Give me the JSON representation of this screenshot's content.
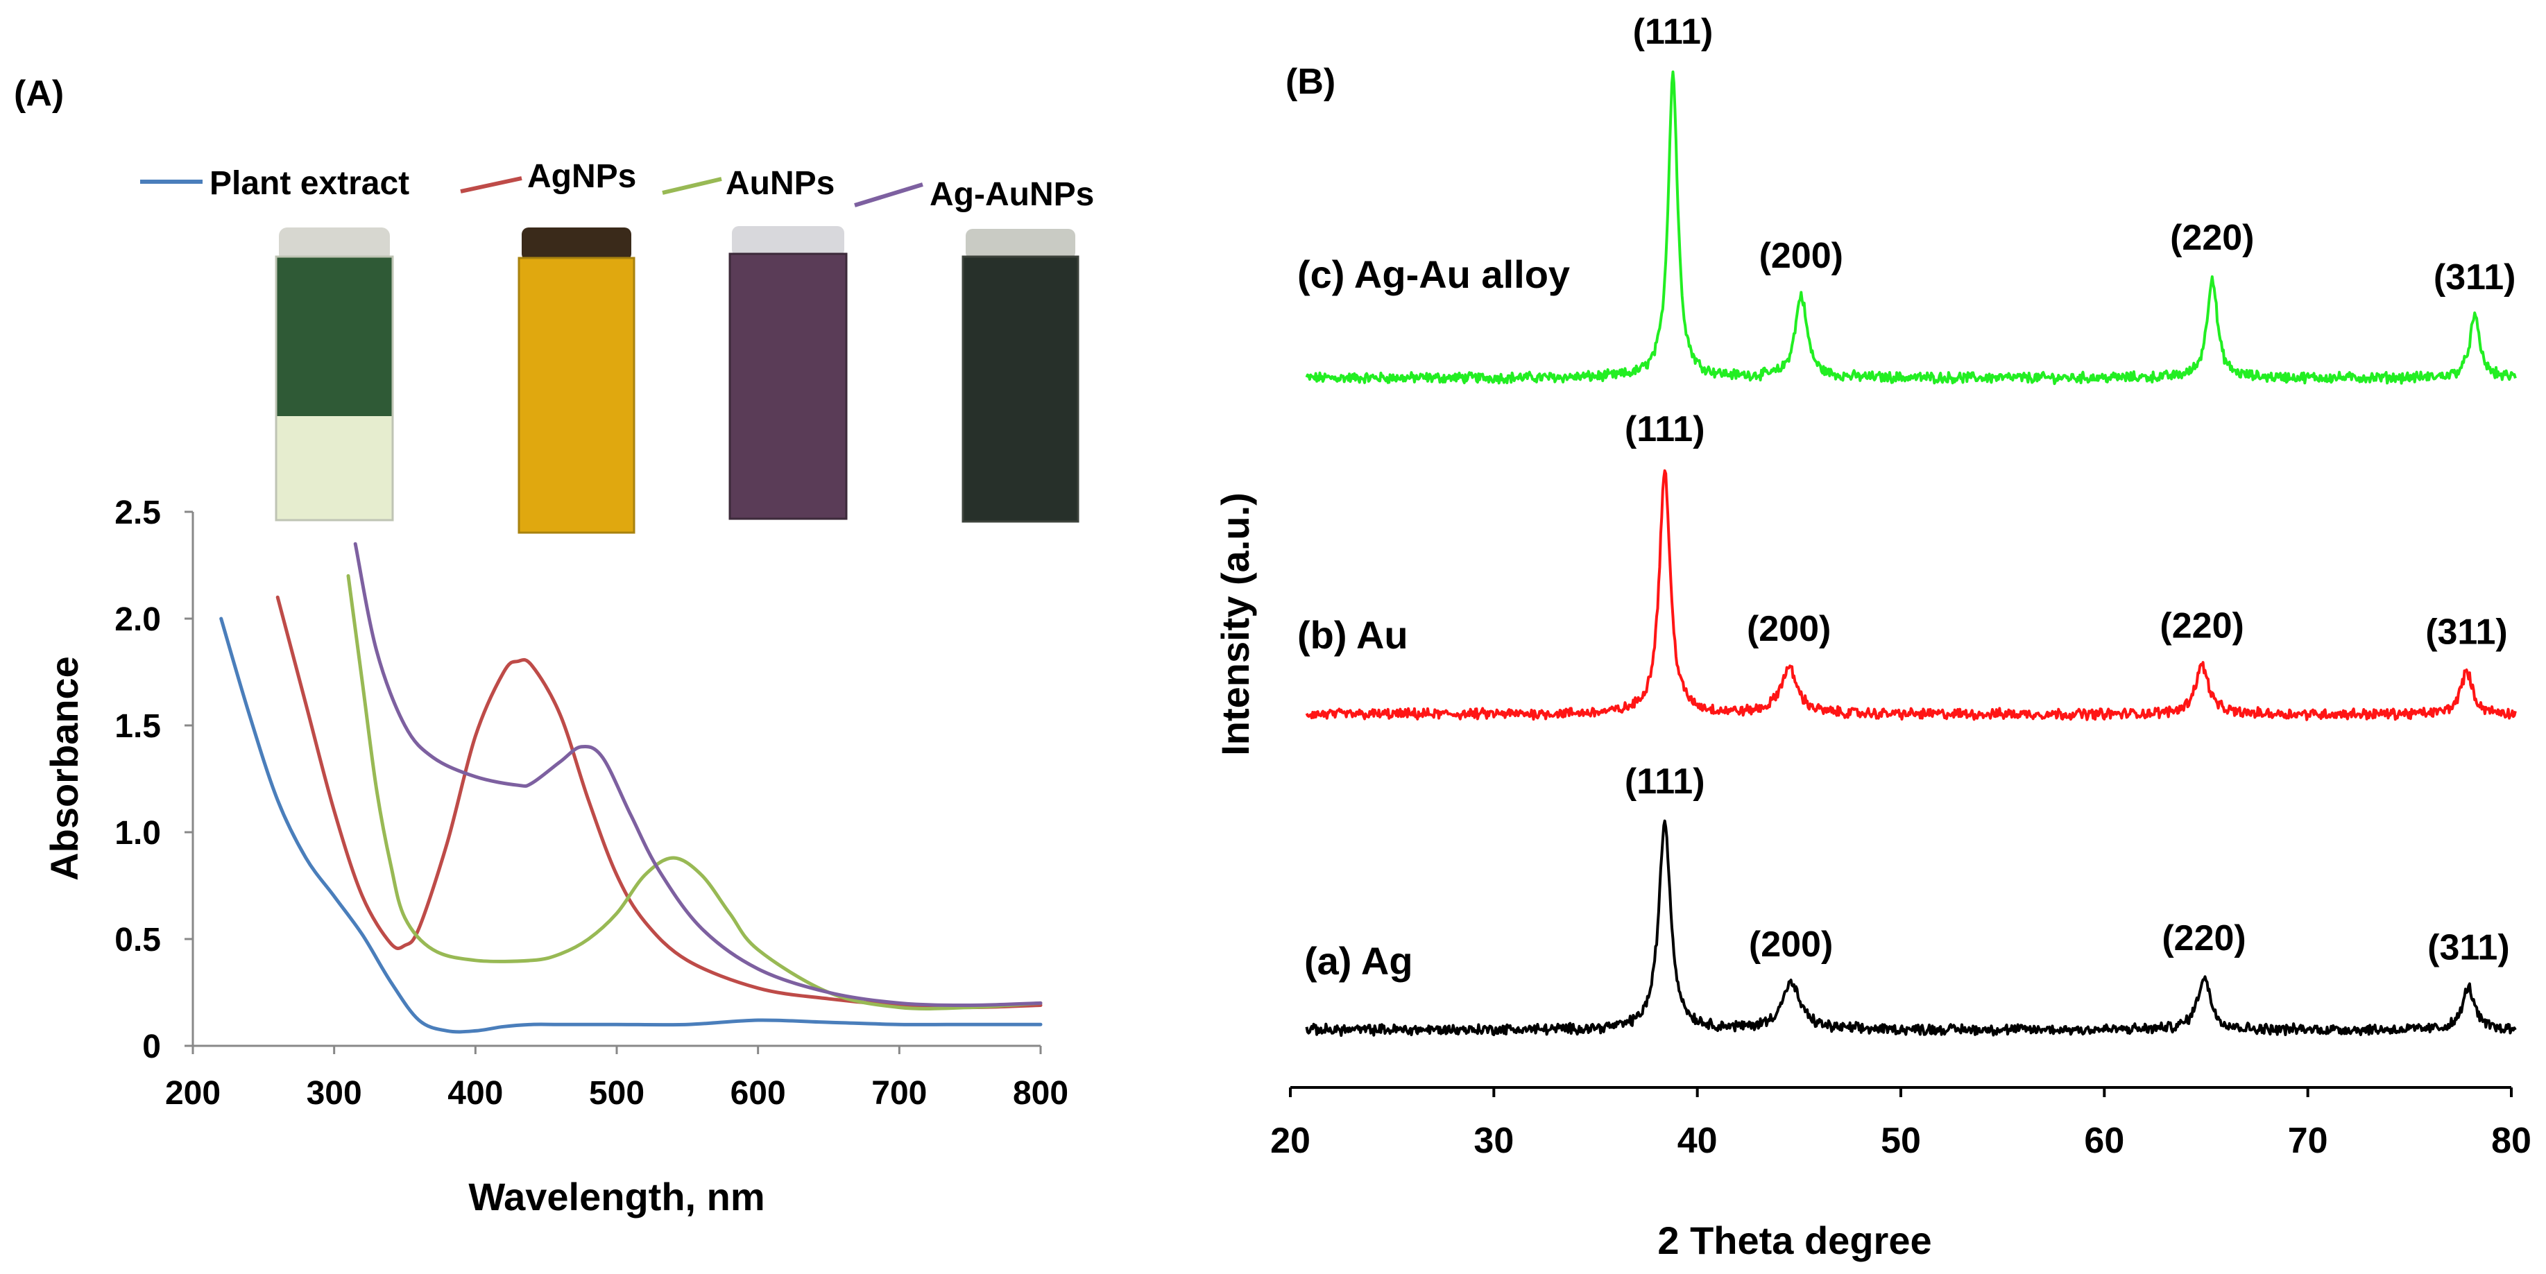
{
  "colors": {
    "plant": "#4a7ebb",
    "ag": "#be4b48",
    "au": "#98b954",
    "agau": "#7d60a0",
    "xrd_alloy": "#22ee22",
    "xrd_au": "#ff1515",
    "xrd_ag": "#000000",
    "vial_plant_top": "#2f5a36",
    "vial_plant_bottom": "#e6edcf",
    "vial_ag": "#e0a80f",
    "vial_au": "#5a3c57",
    "vial_agau": "#27302a"
  },
  "chart_data": [
    {
      "panel_label": "(A)",
      "type": "line",
      "title": "",
      "xlabel": "Wavelength, nm",
      "ylabel": "Absorbance",
      "xlim": [
        200,
        800
      ],
      "ylim": [
        0,
        2.5
      ],
      "xticks": [
        "200",
        "300",
        "400",
        "500",
        "600",
        "700",
        "800"
      ],
      "yticks": [
        "0",
        "0.5",
        "1.0",
        "1.5",
        "2.0",
        "2.5"
      ],
      "legend_position": "top",
      "vial_images": [
        "Plant extract vial",
        "AgNPs vial",
        "AuNPs vial",
        "Ag-AuNPs vial"
      ],
      "series": [
        {
          "name": "Plant extract",
          "color_key": "plant",
          "x": [
            220,
            240,
            260,
            280,
            300,
            320,
            340,
            360,
            380,
            400,
            420,
            440,
            460,
            500,
            550,
            600,
            650,
            700,
            750,
            800
          ],
          "y": [
            2.0,
            1.55,
            1.15,
            0.88,
            0.7,
            0.52,
            0.3,
            0.12,
            0.07,
            0.07,
            0.09,
            0.1,
            0.1,
            0.1,
            0.1,
            0.12,
            0.11,
            0.1,
            0.1,
            0.1
          ]
        },
        {
          "name": "AgNPs",
          "color_key": "ag",
          "x": [
            260,
            280,
            300,
            320,
            340,
            350,
            360,
            380,
            400,
            420,
            430,
            440,
            460,
            480,
            500,
            520,
            550,
            600,
            650,
            700,
            750,
            800
          ],
          "y": [
            2.1,
            1.6,
            1.1,
            0.7,
            0.48,
            0.47,
            0.55,
            0.95,
            1.45,
            1.75,
            1.8,
            1.78,
            1.55,
            1.15,
            0.8,
            0.58,
            0.4,
            0.27,
            0.22,
            0.19,
            0.18,
            0.19
          ]
        },
        {
          "name": "AuNPs",
          "color_key": "au",
          "x": [
            310,
            320,
            330,
            340,
            350,
            370,
            400,
            440,
            460,
            480,
            500,
            520,
            540,
            560,
            580,
            600,
            650,
            700,
            750,
            800
          ],
          "y": [
            2.2,
            1.7,
            1.2,
            0.85,
            0.6,
            0.45,
            0.4,
            0.4,
            0.43,
            0.5,
            0.62,
            0.8,
            0.88,
            0.8,
            0.62,
            0.45,
            0.25,
            0.18,
            0.18,
            0.2
          ]
        },
        {
          "name": "Ag-AuNPs",
          "color_key": "agau",
          "x": [
            315,
            330,
            350,
            370,
            400,
            430,
            440,
            460,
            475,
            490,
            510,
            530,
            560,
            600,
            650,
            700,
            750,
            800
          ],
          "y": [
            2.35,
            1.85,
            1.5,
            1.35,
            1.26,
            1.22,
            1.23,
            1.33,
            1.4,
            1.35,
            1.08,
            0.82,
            0.55,
            0.36,
            0.25,
            0.2,
            0.19,
            0.2
          ]
        }
      ]
    },
    {
      "panel_label": "(B)",
      "type": "line",
      "title": "",
      "xlabel": "2 Theta degree",
      "ylabel": "Intensity (a.u.)",
      "xlim": [
        20,
        80
      ],
      "xticks": [
        "20",
        "30",
        "40",
        "50",
        "60",
        "70",
        "80"
      ],
      "series": [
        {
          "name": "(c) Ag-Au alloy",
          "color_key": "xrd_alloy",
          "level": 2,
          "baseline": 0.0,
          "peaks": [
            {
              "label": "(111)",
              "two_theta": 38.8,
              "height": 10.0,
              "width": 0.28
            },
            {
              "label": "(200)",
              "two_theta": 45.1,
              "height": 2.7,
              "width": 0.35
            },
            {
              "label": "(220)",
              "two_theta": 65.3,
              "height": 3.3,
              "width": 0.3
            },
            {
              "label": "(311)",
              "two_theta": 78.2,
              "height": 2.0,
              "width": 0.3
            }
          ]
        },
        {
          "name": "(b)  Au",
          "color_key": "xrd_au",
          "level": 1,
          "baseline": 0.0,
          "peaks": [
            {
              "label": "(111)",
              "two_theta": 38.4,
              "height": 8.0,
              "width": 0.32
            },
            {
              "label": "(200)",
              "two_theta": 44.5,
              "height": 1.5,
              "width": 0.5
            },
            {
              "label": "(220)",
              "two_theta": 64.8,
              "height": 1.6,
              "width": 0.4
            },
            {
              "label": "(311)",
              "two_theta": 77.8,
              "height": 1.4,
              "width": 0.35
            }
          ]
        },
        {
          "name": "(a)  Ag",
          "color_key": "xrd_ag",
          "level": 0,
          "baseline": 0.0,
          "peaks": [
            {
              "label": "(111)",
              "two_theta": 38.4,
              "height": 6.8,
              "width": 0.35
            },
            {
              "label": "(200)",
              "two_theta": 44.6,
              "height": 1.5,
              "width": 0.55
            },
            {
              "label": "(220)",
              "two_theta": 64.9,
              "height": 1.7,
              "width": 0.4
            },
            {
              "label": "(311)",
              "two_theta": 77.9,
              "height": 1.4,
              "width": 0.35
            }
          ]
        }
      ]
    }
  ]
}
